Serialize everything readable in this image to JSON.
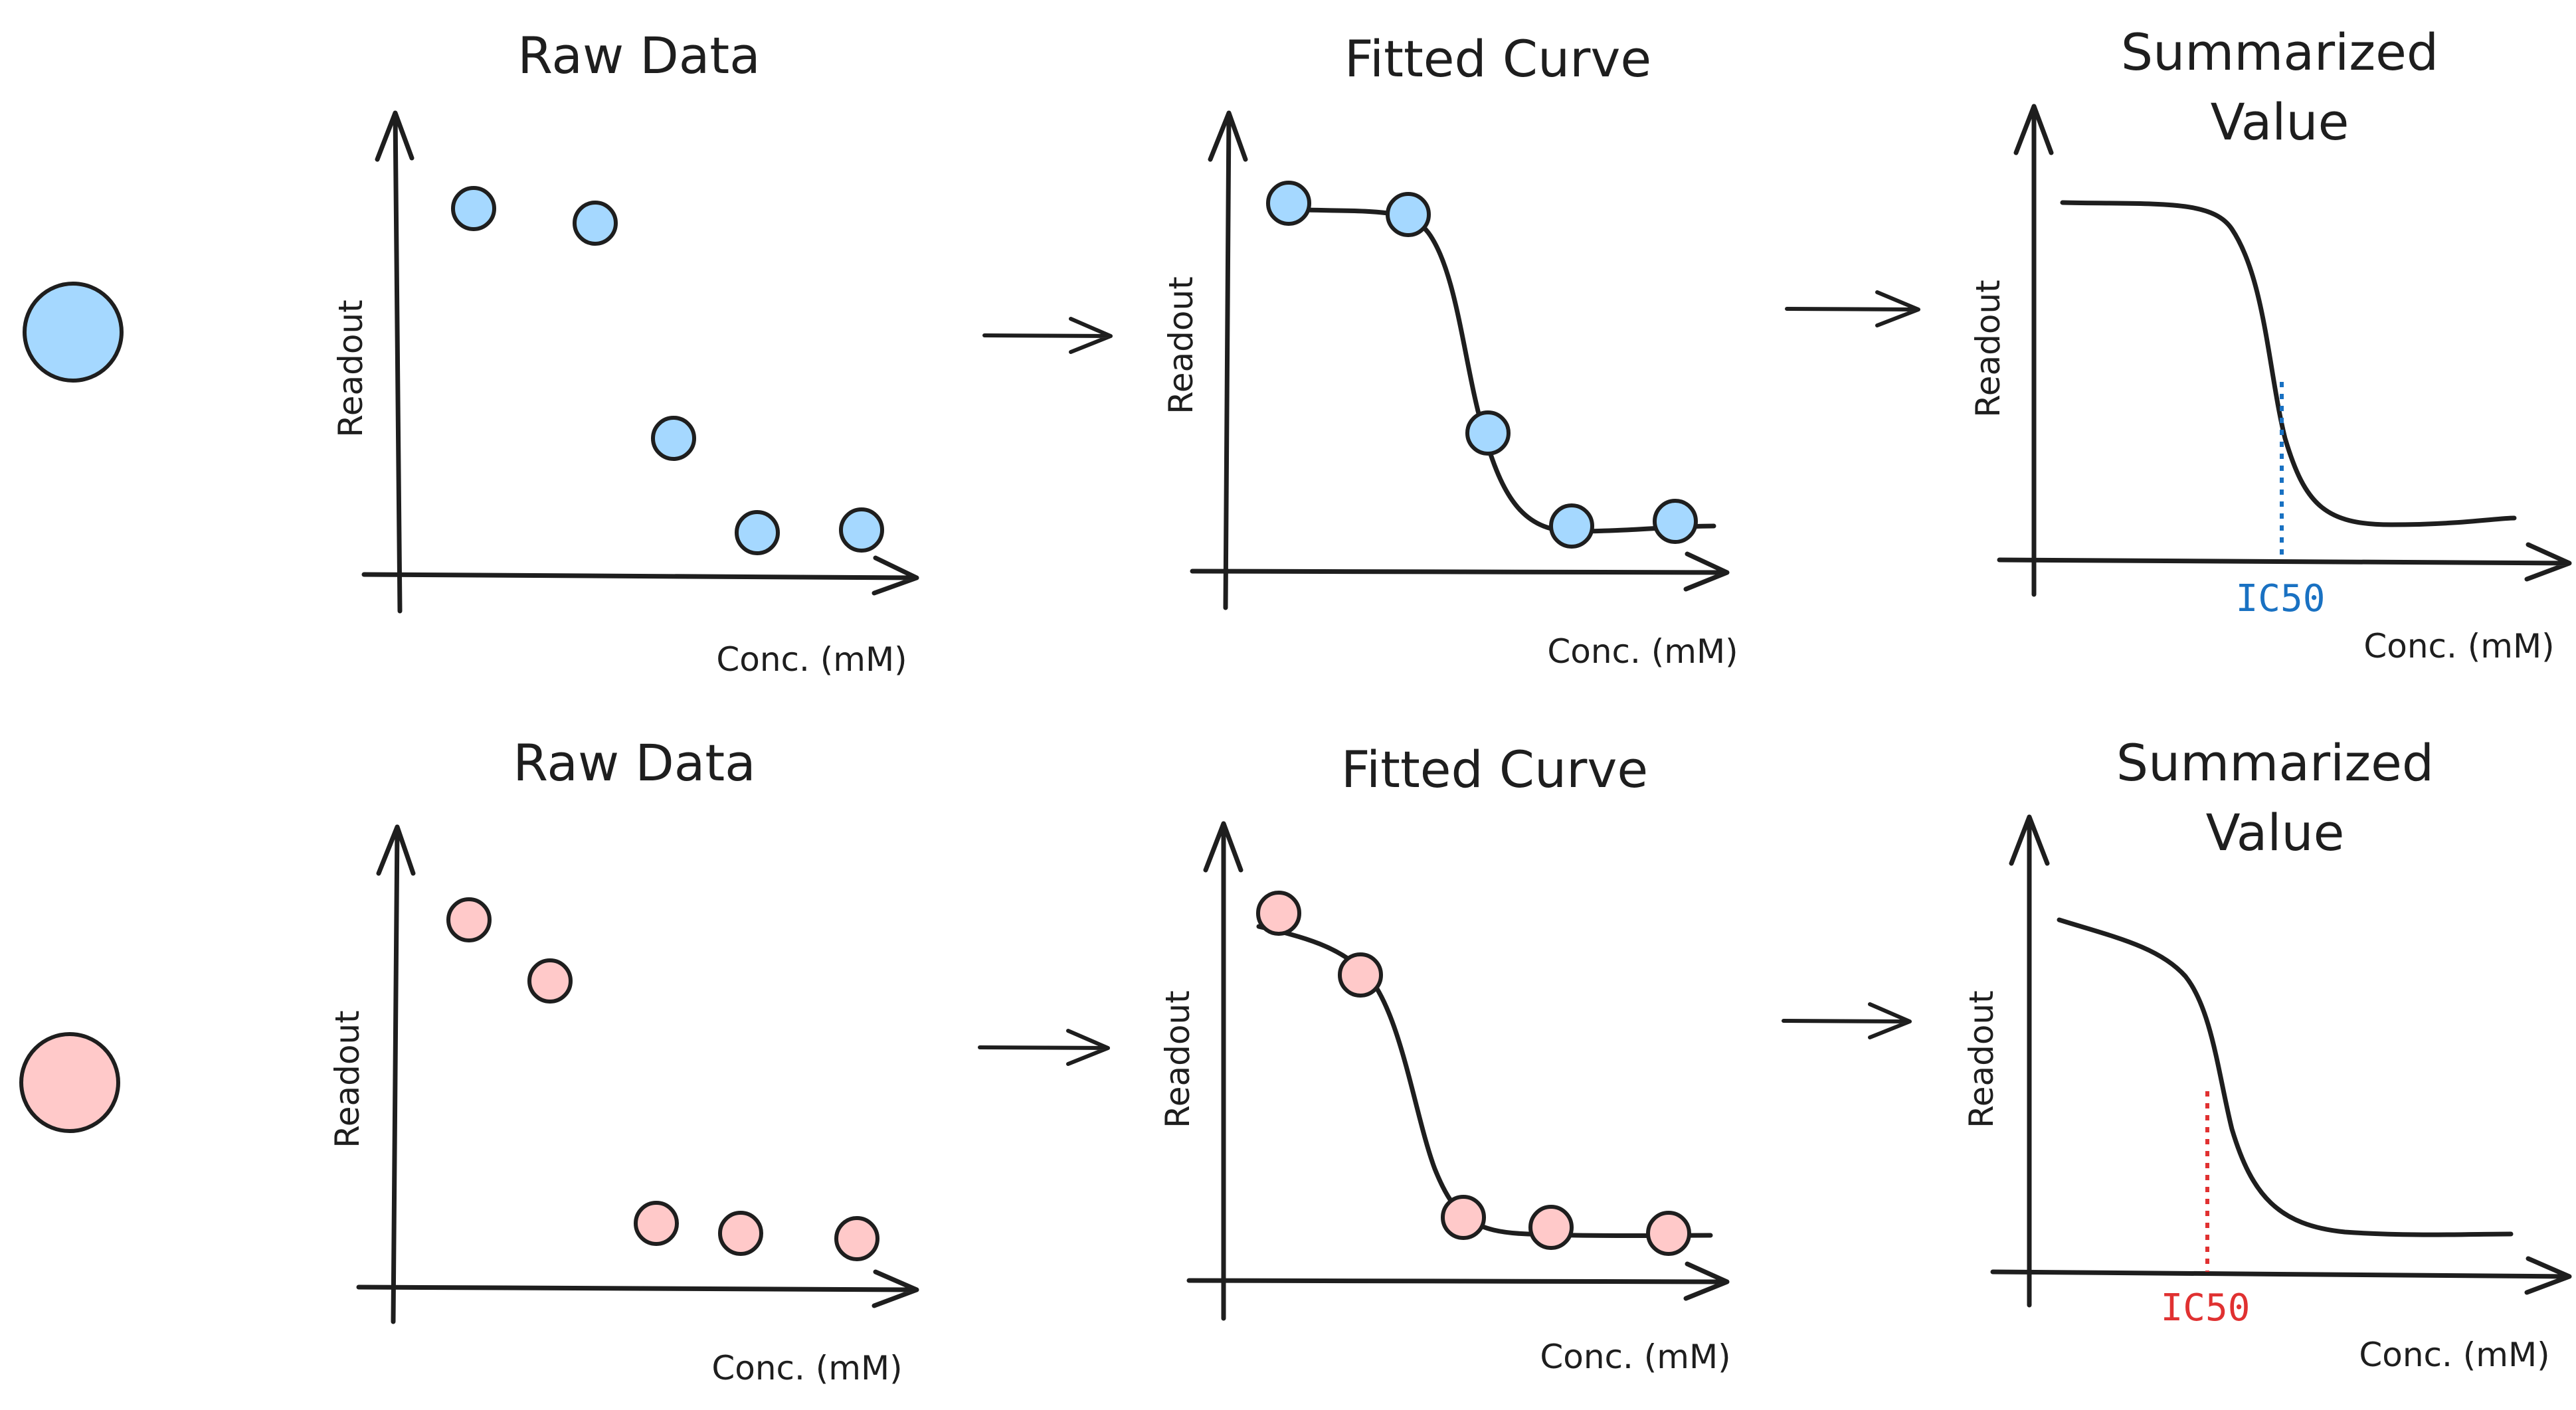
{
  "rows": [
    {
      "id": "blue",
      "color": "#a5d8ff",
      "marker_color": "#1971c2",
      "raw_title": "Raw Data",
      "fit_title": "Fitted Curve",
      "sum_title_line1": "Summarized",
      "sum_title_line2": "Value",
      "ylabel": "Readout",
      "xlabel": "Conc. (mM)",
      "ic50_label": "IC50"
    },
    {
      "id": "red",
      "color": "#ffc9c9",
      "marker_color": "#e03131",
      "raw_title": "Raw Data",
      "fit_title": "Fitted Curve",
      "sum_title_line1": "Summarized",
      "sum_title_line2": "Value",
      "ylabel": "Readout",
      "xlabel": "Conc. (mM)",
      "ic50_label": "IC50"
    }
  ]
}
